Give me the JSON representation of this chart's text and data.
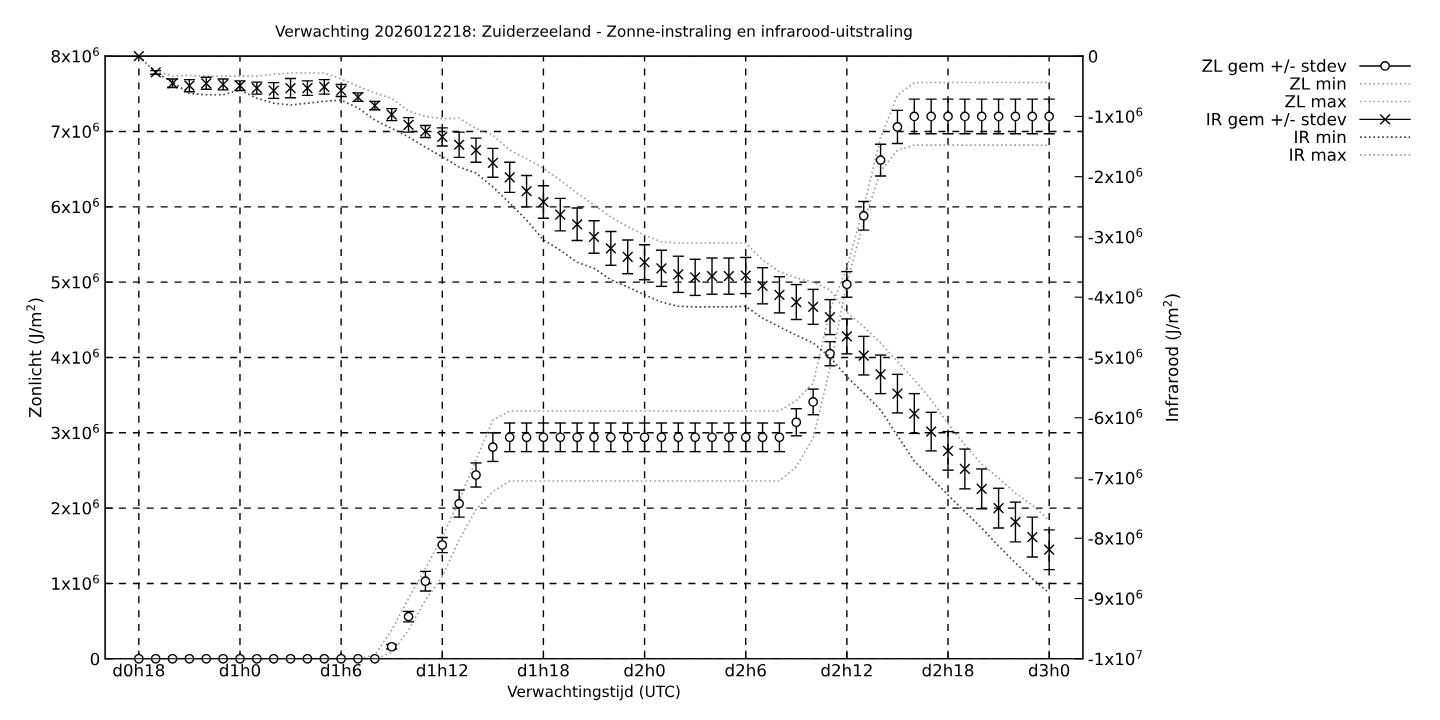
{
  "chart_data": {
    "type": "scatter",
    "title": "Verwachting 2026012218: Zuiderzeeland - Zonne-instraling en infrarood-uitstraling",
    "xlabel": "Verwachtingstijd (UTC)",
    "ylabel": "Zonlicht (J/m$^{2}$)",
    "y2label": "Infrarood (J/m$^{2}$)",
    "categories": [
      "d0h18",
      null,
      null,
      null,
      null,
      null,
      "d1h0",
      null,
      null,
      null,
      null,
      null,
      "d1h6",
      null,
      null,
      null,
      null,
      null,
      "d1h12",
      null,
      null,
      null,
      null,
      null,
      "d1h18",
      null,
      null,
      null,
      null,
      null,
      "d2h0",
      null,
      null,
      null,
      null,
      null,
      "d2h6",
      null,
      null,
      null,
      null,
      null,
      "d2h12",
      null,
      null,
      null,
      null,
      null,
      "d2h18",
      null,
      null,
      null,
      null,
      null,
      "d3h0"
    ],
    "ylim": [
      0,
      8000000.0
    ],
    "yticks": [
      {
        "value": 0,
        "label": "0"
      },
      {
        "value": 1000000.0,
        "label": "1x10$^{6}$"
      },
      {
        "value": 2000000.0,
        "label": "2x10$^{6}$"
      },
      {
        "value": 3000000.0,
        "label": "3x10$^{6}$"
      },
      {
        "value": 4000000.0,
        "label": "4x10$^{6}$"
      },
      {
        "value": 5000000.0,
        "label": "5x10$^{6}$"
      },
      {
        "value": 6000000.0,
        "label": "6x10$^{6}$"
      },
      {
        "value": 7000000.0,
        "label": "7x10$^{6}$"
      },
      {
        "value": 8000000.0,
        "label": "8x10$^{6}$"
      }
    ],
    "y2lim": [
      -10000000.0,
      0
    ],
    "y2ticks": [
      {
        "value": 0,
        "label": "0"
      },
      {
        "value": -1000000.0,
        "label": "-1x10$^{6}$"
      },
      {
        "value": -2000000.0,
        "label": "-2x10$^{6}$"
      },
      {
        "value": -3000000.0,
        "label": "-3x10$^{6}$"
      },
      {
        "value": -4000000.0,
        "label": "-4x10$^{6}$"
      },
      {
        "value": -5000000.0,
        "label": "-5x10$^{6}$"
      },
      {
        "value": -6000000.0,
        "label": "-6x10$^{6}$"
      },
      {
        "value": -7000000.0,
        "label": "-7x10$^{6}$"
      },
      {
        "value": -8000000.0,
        "label": "-8x10$^{6}$"
      },
      {
        "value": -9000000.0,
        "label": "-9x10$^{6}$"
      },
      {
        "value": -10000000.0,
        "label": "-1x10$^{7}$"
      }
    ],
    "grid": true,
    "legend": "top right",
    "series": [
      {
        "name": "ZL gem +/- stdev",
        "marker": "circle",
        "color": "#000000",
        "values": [
          0,
          0,
          0,
          0,
          0,
          0,
          0,
          0,
          0,
          0,
          0,
          0,
          0,
          0,
          0,
          160000.0,
          560000.0,
          1030000.0,
          1510000.0,
          2060000.0,
          2440000.0,
          2810000.0,
          2940000.0,
          2940000.0,
          2940000.0,
          2940000.0,
          2940000.0,
          2940000.0,
          2940000.0,
          2940000.0,
          2940000.0,
          2940000.0,
          2940000.0,
          2940000.0,
          2940000.0,
          2940000.0,
          2940000.0,
          2940000.0,
          2940000.0,
          3140000.0,
          3410000.0,
          4050000.0,
          4970000.0,
          5880000.0,
          6620000.0,
          7060000.0,
          7200000.0,
          7200000.0,
          7200000.0,
          7200000.0,
          7200000.0,
          7200000.0,
          7200000.0,
          7200000.0,
          7200000.0
        ],
        "errors": [
          null,
          null,
          null,
          null,
          null,
          null,
          null,
          null,
          null,
          null,
          null,
          null,
          null,
          null,
          null,
          30000.0,
          70000.0,
          130000.0,
          100000.0,
          180000.0,
          160000.0,
          190000.0,
          190000.0,
          190000.0,
          190000.0,
          190000.0,
          190000.0,
          190000.0,
          190000.0,
          190000.0,
          190000.0,
          190000.0,
          190000.0,
          190000.0,
          190000.0,
          190000.0,
          190000.0,
          190000.0,
          190000.0,
          180000.0,
          170000.0,
          160000.0,
          170000.0,
          190000.0,
          210000.0,
          220000.0,
          230000.0,
          230000.0,
          230000.0,
          230000.0,
          230000.0,
          230000.0,
          230000.0,
          230000.0,
          230000.0
        ]
      },
      {
        "name": "ZL min",
        "type": "line",
        "line_style": "dotted",
        "color": "#a0a0a0",
        "values": [
          0,
          0,
          0,
          0,
          0,
          0,
          0,
          0,
          0,
          0,
          0,
          0,
          0,
          0,
          0,
          80000.0,
          380000.0,
          780000.0,
          1090000.0,
          1580000.0,
          1980000.0,
          2220000.0,
          2360000.0,
          2360000.0,
          2360000.0,
          2360000.0,
          2360000.0,
          2360000.0,
          2360000.0,
          2360000.0,
          2360000.0,
          2360000.0,
          2360000.0,
          2360000.0,
          2360000.0,
          2360000.0,
          2360000.0,
          2360000.0,
          2360000.0,
          2550000.0,
          2930000.0,
          3860000.0,
          4990000.0,
          5800000.0,
          6470000.0,
          6750000.0,
          6820000.0,
          6820000.0,
          6820000.0,
          6820000.0,
          6820000.0,
          6820000.0,
          6820000.0,
          6820000.0,
          6820000.0
        ]
      },
      {
        "name": "ZL max",
        "type": "line",
        "line_style": "dotted",
        "color": "#a0a0a0",
        "values": [
          0,
          0,
          0,
          0,
          0,
          0,
          0,
          0,
          0,
          0,
          0,
          0,
          0,
          0,
          50000.0,
          380000.0,
          800000.0,
          1200000.0,
          1620000.0,
          2100000.0,
          2640000.0,
          3170000.0,
          3290000.0,
          3290000.0,
          3290000.0,
          3290000.0,
          3290000.0,
          3290000.0,
          3290000.0,
          3290000.0,
          3290000.0,
          3290000.0,
          3290000.0,
          3290000.0,
          3290000.0,
          3290000.0,
          3290000.0,
          3290000.0,
          3290000.0,
          3430000.0,
          3660000.0,
          4630000.0,
          5190000.0,
          6000000.0,
          6920000.0,
          7480000.0,
          7650000.0,
          7650000.0,
          7650000.0,
          7650000.0,
          7650000.0,
          7650000.0,
          7650000.0,
          7650000.0,
          7650000.0
        ]
      },
      {
        "name": "IR gem +/- stdev",
        "marker": "cross",
        "color": "#000000",
        "axis": "y2",
        "values": [
          0,
          -270000.0,
          -450000.0,
          -490000.0,
          -450000.0,
          -470000.0,
          -490000.0,
          -530000.0,
          -570000.0,
          -530000.0,
          -530000.0,
          -510000.0,
          -570000.0,
          -680000.0,
          -820000.0,
          -970000.0,
          -1140000.0,
          -1250000.0,
          -1340000.0,
          -1470000.0,
          -1560000.0,
          -1770000.0,
          -2010000.0,
          -2240000.0,
          -2420000.0,
          -2630000.0,
          -2790000.0,
          -3000000.0,
          -3190000.0,
          -3330000.0,
          -3420000.0,
          -3520000.0,
          -3620000.0,
          -3670000.0,
          -3650000.0,
          -3650000.0,
          -3640000.0,
          -3810000.0,
          -3960000.0,
          -4080000.0,
          -4160000.0,
          -4330000.0,
          -4650000.0,
          -4970000.0,
          -5280000.0,
          -5600000.0,
          -5930000.0,
          -6230000.0,
          -6550000.0,
          -6850000.0,
          -7180000.0,
          -7500000.0,
          -7730000.0,
          -7980000.0,
          -8190000.0
        ],
        "errors": [
          null,
          30000.0,
          70000.0,
          100000.0,
          100000.0,
          90000.0,
          80000.0,
          100000.0,
          130000.0,
          160000.0,
          120000.0,
          120000.0,
          100000.0,
          70000.0,
          70000.0,
          100000.0,
          120000.0,
          100000.0,
          150000.0,
          210000.0,
          200000.0,
          240000.0,
          250000.0,
          260000.0,
          270000.0,
          270000.0,
          270000.0,
          270000.0,
          280000.0,
          280000.0,
          290000.0,
          300000.0,
          300000.0,
          300000.0,
          300000.0,
          300000.0,
          300000.0,
          300000.0,
          300000.0,
          290000.0,
          290000.0,
          290000.0,
          290000.0,
          320000.0,
          320000.0,
          320000.0,
          330000.0,
          320000.0,
          320000.0,
          330000.0,
          330000.0,
          330000.0,
          330000.0,
          330000.0,
          330000.0
        ]
      },
      {
        "name": "IR min",
        "type": "line",
        "line_style": "dotted",
        "color": "#404040",
        "axis": "y2",
        "values": [
          0,
          -270000.0,
          -430000.0,
          -620000.0,
          -640000.0,
          -640000.0,
          -560000.0,
          -700000.0,
          -780000.0,
          -810000.0,
          -780000.0,
          -750000.0,
          -730000.0,
          -860000.0,
          -1060000.0,
          -1200000.0,
          -1340000.0,
          -1510000.0,
          -1670000.0,
          -1840000.0,
          -1940000.0,
          -2170000.0,
          -2440000.0,
          -2720000.0,
          -3050000.0,
          -3220000.0,
          -3420000.0,
          -3520000.0,
          -3710000.0,
          -3830000.0,
          -3960000.0,
          -4080000.0,
          -4150000.0,
          -4160000.0,
          -4160000.0,
          -4160000.0,
          -4150000.0,
          -4350000.0,
          -4490000.0,
          -4630000.0,
          -4760000.0,
          -4990000.0,
          -5320000.0,
          -5590000.0,
          -5870000.0,
          -6300000.0,
          -6720000.0,
          -7000000.0,
          -7280000.0,
          -7560000.0,
          -7830000.0,
          -8130000.0,
          -8410000.0,
          -8670000.0,
          -8910000.0
        ]
      },
      {
        "name": "IR max",
        "type": "line",
        "line_style": "dotted",
        "color": "#a0a0a0",
        "axis": "y2",
        "values": [
          0,
          -250000.0,
          -330000.0,
          -320000.0,
          -330000.0,
          -330000.0,
          -330000.0,
          -330000.0,
          -300000.0,
          -280000.0,
          -280000.0,
          -280000.0,
          -380000.0,
          -500000.0,
          -610000.0,
          -700000.0,
          -910000.0,
          -1000000.0,
          -1040000.0,
          -1030000.0,
          -1200000.0,
          -1310000.0,
          -1560000.0,
          -1700000.0,
          -1860000.0,
          -2060000.0,
          -2270000.0,
          -2470000.0,
          -2670000.0,
          -2830000.0,
          -2970000.0,
          -3080000.0,
          -3100000.0,
          -3100000.0,
          -3100000.0,
          -3100000.0,
          -3100000.0,
          -3380000.0,
          -3580000.0,
          -3680000.0,
          -3750000.0,
          -3880000.0,
          -4250000.0,
          -4490000.0,
          -4760000.0,
          -5070000.0,
          -5370000.0,
          -5700000.0,
          -6100000.0,
          -6450000.0,
          -6770000.0,
          -7000000.0,
          -7250000.0,
          -7450000.0,
          -7700000.0
        ]
      }
    ]
  }
}
